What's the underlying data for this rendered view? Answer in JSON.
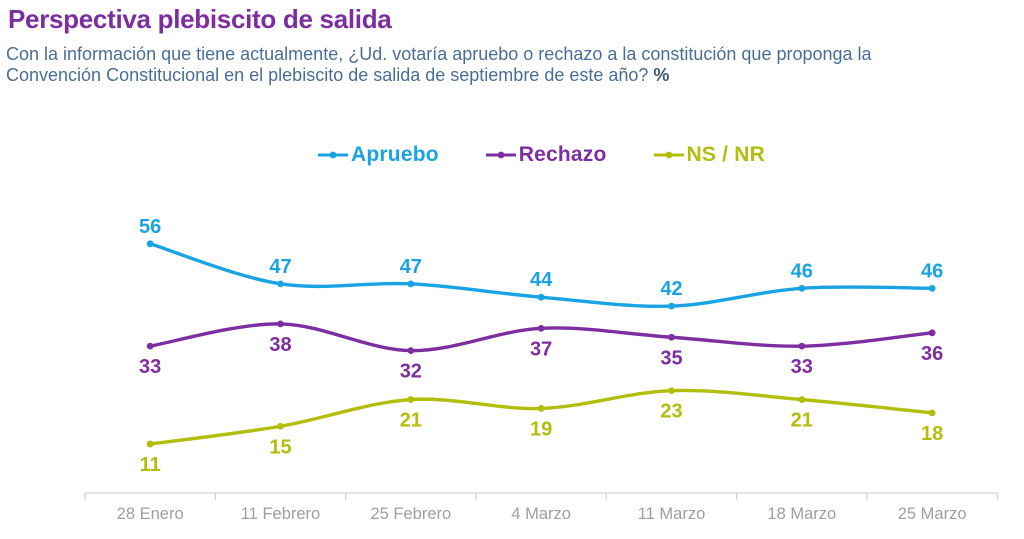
{
  "header": {
    "title": "Perspectiva plebiscito de salida",
    "question_line1": "Con la información que tiene actualmente, ¿Ud. votaría apruebo o rechazo a la constitución que proponga la",
    "question_line2": "Convención Constitucional en el plebiscito de salida de septiembre de este año?",
    "question_suffix": "%"
  },
  "colors": {
    "title": "#7c2da0",
    "question": "#4a6e96",
    "question_suffix": "#3c5a7d",
    "axis_line": "#d2d2d2",
    "axis_label": "#9aa0a5",
    "background": "#ffffff"
  },
  "chart_data": {
    "type": "line",
    "curve": "spline",
    "categories": [
      "28 Enero",
      "11 Febrero",
      "25 Febrero",
      "4 Marzo",
      "11 Marzo",
      "18 Marzo",
      "25 Marzo"
    ],
    "series": [
      {
        "name": "Apruebo",
        "color": "#1aa3e2",
        "values": [
          56,
          47,
          47,
          44,
          42,
          46,
          46
        ],
        "label_position": "above"
      },
      {
        "name": "Rechazo",
        "color": "#7d2ea0",
        "values": [
          33,
          38,
          32,
          37,
          35,
          33,
          36
        ],
        "label_position": "below"
      },
      {
        "name": "NS / NR",
        "color": "#b3bd0c",
        "values": [
          11,
          15,
          21,
          19,
          23,
          21,
          18
        ],
        "label_position": "below"
      }
    ],
    "xlabel": "",
    "ylabel": "",
    "ylim": [
      0,
      60
    ],
    "grid": false,
    "y_axis_visible": false,
    "legend_position": "top-center",
    "data_labels": true
  }
}
